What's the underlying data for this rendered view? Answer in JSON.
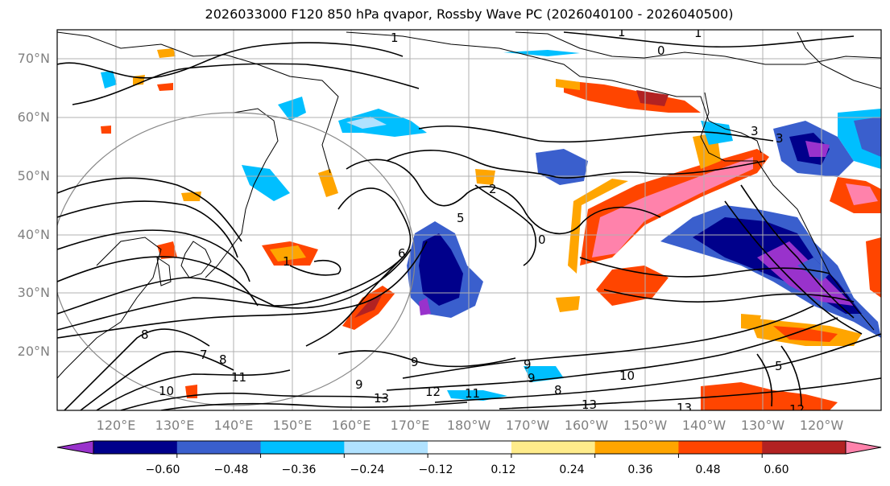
{
  "title": "2026033000 F120 850 hPa qvapor, Rossby Wave PC (2026040100 - 2026040500)",
  "lat_labels": [
    "70°N",
    "60°N",
    "50°N",
    "40°N",
    "30°N",
    "20°N"
  ],
  "lon_labels": [
    "120°E",
    "130°E",
    "140°E",
    "150°E",
    "160°E",
    "170°E",
    "180°W",
    "170°W",
    "160°W",
    "150°W",
    "140°W",
    "130°W",
    "120°W"
  ],
  "contour_labels": [
    "1",
    "1",
    "0",
    "1",
    "3",
    "2",
    "5",
    "6",
    "1",
    "0",
    "8",
    "9",
    "7",
    "8",
    "11",
    "10",
    "9",
    "13",
    "12",
    "11",
    "13",
    "13",
    "12",
    "10",
    "9",
    "5",
    "3",
    "9",
    "8"
  ],
  "colorbar": {
    "ticks": [
      "−0.60",
      "−0.48",
      "−0.36",
      "−0.24",
      "−0.12",
      "0.12",
      "0.24",
      "0.36",
      "0.48",
      "0.60"
    ],
    "colors": [
      "#9932CC",
      "#00008B",
      "#3A5FCD",
      "#00BFFF",
      "#B0E2FF",
      "#FFFFFF",
      "#FFEC8B",
      "#FFA500",
      "#FF4500",
      "#B22222",
      "#FF82AB"
    ]
  },
  "map": {
    "projection": "PlateCarree",
    "lon_range": [
      110,
      250
    ],
    "lat_range": [
      10,
      75
    ],
    "field": "850 hPa qvapor",
    "shading": "Rossby Wave PC"
  }
}
